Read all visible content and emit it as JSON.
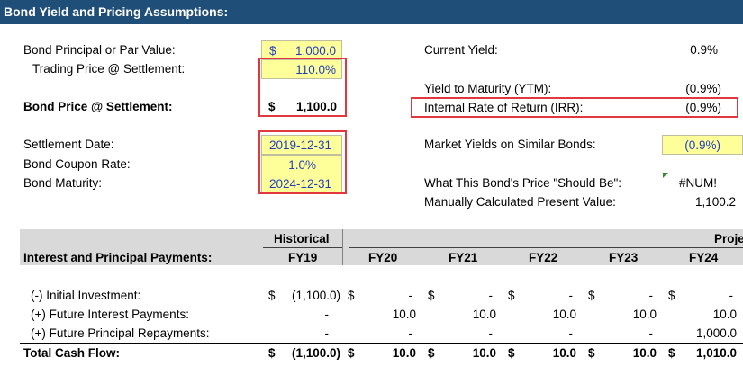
{
  "header": {
    "title": "Bond Yield and Pricing Assumptions:"
  },
  "assumptions": {
    "par_label": "Bond Principal or Par Value:",
    "par_cur": "$",
    "par_value": "1,000.0",
    "trading_label": "Trading Price @ Settlement:",
    "trading_value": "110.0%",
    "price_label": "Bond Price @ Settlement:",
    "price_cur": "$",
    "price_value": "1,100.0",
    "settlement_label": "Settlement Date:",
    "settlement_value": "2019-12-31",
    "coupon_label": "Bond Coupon Rate:",
    "coupon_value": "1.0%",
    "maturity_label": "Bond Maturity:",
    "maturity_value": "2024-12-31"
  },
  "metrics": {
    "current_yield_label": "Current Yield:",
    "current_yield_value": "0.9%",
    "ytm_label": "Yield to Maturity (YTM):",
    "ytm_value": "(0.9%)",
    "irr_label": "Internal Rate of Return (IRR):",
    "irr_value": "(0.9%)",
    "market_label": "Market Yields on Similar Bonds:",
    "market_value": "(0.9%)",
    "should_label": "What This Bond's Price \"Should Be\":",
    "should_value": "#NUM!",
    "pv_label": "Manually Calculated Present Value:",
    "pv_value": "1,100.2"
  },
  "table": {
    "historical": "Historical",
    "projected": "Proje",
    "title": "Interest and Principal Payments:",
    "years": [
      "FY19",
      "FY20",
      "FY21",
      "FY22",
      "FY23",
      "FY24"
    ],
    "rows": [
      {
        "label": "(-) Initial Investment:",
        "cells": [
          {
            "cur": "$",
            "val": "(1,100.0)"
          },
          {
            "cur": "$",
            "val": "-"
          },
          {
            "cur": "$",
            "val": "-"
          },
          {
            "cur": "$",
            "val": "-"
          },
          {
            "cur": "$",
            "val": "-"
          },
          {
            "cur": "$",
            "val": "-"
          }
        ]
      },
      {
        "label": "(+) Future Interest Payments:",
        "cells": [
          {
            "cur": "",
            "val": "-"
          },
          {
            "cur": "",
            "val": "10.0"
          },
          {
            "cur": "",
            "val": "10.0"
          },
          {
            "cur": "",
            "val": "10.0"
          },
          {
            "cur": "",
            "val": "10.0"
          },
          {
            "cur": "",
            "val": "10.0"
          }
        ]
      },
      {
        "label": "(+) Future Principal Repayments:",
        "cells": [
          {
            "cur": "",
            "val": "-"
          },
          {
            "cur": "",
            "val": "-"
          },
          {
            "cur": "",
            "val": "-"
          },
          {
            "cur": "",
            "val": "-"
          },
          {
            "cur": "",
            "val": "-"
          },
          {
            "cur": "",
            "val": "1,000.0"
          }
        ]
      },
      {
        "label": "Total Cash Flow:",
        "cells": [
          {
            "cur": "$",
            "val": "(1,100.0)"
          },
          {
            "cur": "$",
            "val": "10.0"
          },
          {
            "cur": "$",
            "val": "10.0"
          },
          {
            "cur": "$",
            "val": "10.0"
          },
          {
            "cur": "$",
            "val": "10.0"
          },
          {
            "cur": "$",
            "val": "1,010.0"
          }
        ]
      }
    ]
  }
}
